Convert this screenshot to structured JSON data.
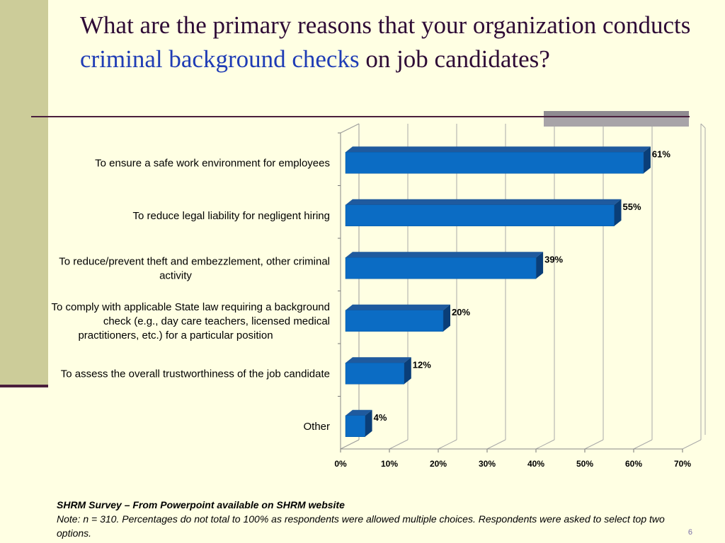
{
  "slide": {
    "title_part1": "What are the primary reasons that your organization conducts ",
    "title_highlight": "criminal background checks",
    "title_part2": " on job candidates?",
    "source": "SHRM Survey – From Powerpoint available on SHRM website",
    "note": "Note: n = 310. Percentages do not total to 100% as respondents were allowed multiple choices. Respondents were asked to select top two options.",
    "page_number": "6"
  },
  "colors": {
    "bar_front": "#0B6CC4",
    "bar_top": "#1F5A9E",
    "bar_side": "#0A3E78",
    "title_highlight": "#1F3CB5"
  },
  "chart_data": {
    "type": "bar",
    "orientation": "horizontal",
    "style": "3d",
    "categories": [
      [
        "To ensure a safe work environment for employees"
      ],
      [
        "To reduce legal liability for negligent hiring"
      ],
      [
        "To reduce/prevent theft and embezzlement, other criminal",
        "activity"
      ],
      [
        "To comply with applicable State law requiring a background",
        "check (e.g., day care teachers, licensed medical",
        "practitioners, etc.) for a particular position"
      ],
      [
        "To assess the overall trustworthiness of the job candidate"
      ],
      [
        "Other"
      ]
    ],
    "values": [
      61,
      55,
      39,
      20,
      12,
      4
    ],
    "value_labels": [
      "61%",
      "55%",
      "39%",
      "20%",
      "12%",
      "4%"
    ],
    "x_ticks": [
      "0%",
      "10%",
      "20%",
      "30%",
      "40%",
      "50%",
      "60%",
      "70%"
    ],
    "xlim": [
      0,
      70
    ],
    "grid": true,
    "legend": "none"
  }
}
